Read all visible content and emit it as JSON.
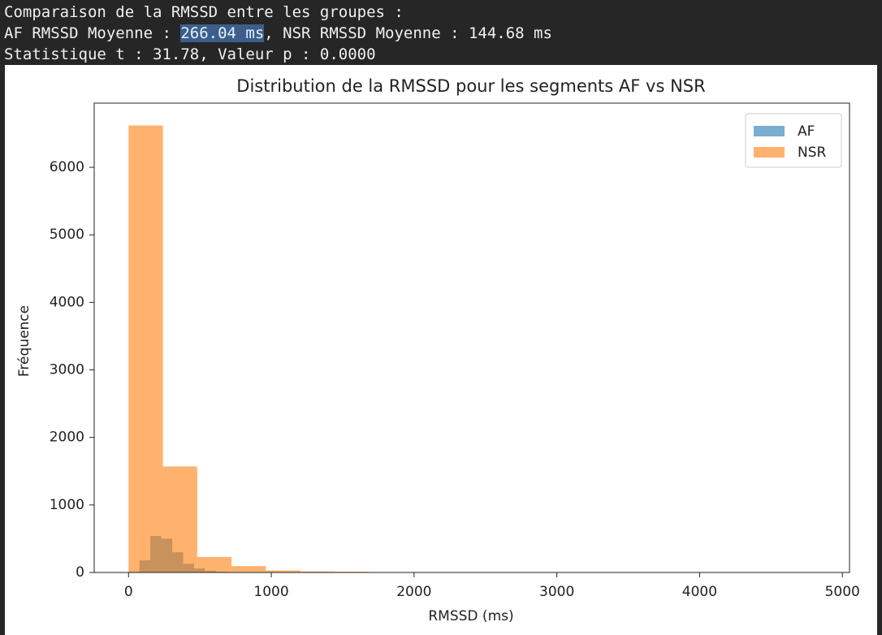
{
  "console": {
    "line1": "Comparaison de la RMSSD entre les groupes :",
    "line2": {
      "prefix": "AF RMSSD Moyenne : ",
      "highlight": "266.04 ms",
      "suffix": ", NSR RMSSD Moyenne : 144.68 ms"
    },
    "line3": "Statistique t : 31.78, Valeur p : 0.0000"
  },
  "chart_data": {
    "type": "histogram",
    "title": "Distribution de la RMSSD pour les segments AF vs NSR",
    "x_label": "RMSSD (ms)",
    "y_label": "Fréquence",
    "xlim": [
      -240.5,
      5050
    ],
    "ylim": [
      0,
      6951
    ],
    "xticks": [
      0,
      1000,
      2000,
      3000,
      4000,
      5000
    ],
    "yticks": [
      0,
      1000,
      2000,
      3000,
      4000,
      5000,
      6000
    ],
    "legend": "upper right",
    "series": [
      {
        "name": "AF",
        "color": "#1f77b4",
        "bins": [
          0,
          76.5,
          153,
          229.5,
          306,
          382.5,
          459,
          535.5,
          612,
          688.5,
          765,
          841.5,
          918,
          994.5,
          1071,
          1147.5,
          1224,
          1300.5,
          1377,
          1453.5,
          1530
        ],
        "values": [
          10,
          180,
          540,
          500,
          300,
          130,
          60,
          25,
          10,
          5,
          3,
          2,
          1,
          1,
          1,
          0,
          0,
          0,
          0,
          1
        ]
      },
      {
        "name": "NSR",
        "color": "#ff7f0e",
        "bins": [
          0,
          240.5,
          481,
          721.5,
          962,
          1202.5,
          1443,
          1683.5,
          1924,
          2164.5,
          2405,
          2645.5,
          2886,
          3126.5,
          3367,
          3607.5,
          3848,
          4088.5,
          4329,
          4569.5,
          4810
        ],
        "values": [
          6620,
          1570,
          230,
          95,
          30,
          15,
          10,
          5,
          5,
          0,
          0,
          0,
          0,
          0,
          0,
          0,
          0,
          0,
          0,
          1
        ]
      }
    ]
  }
}
